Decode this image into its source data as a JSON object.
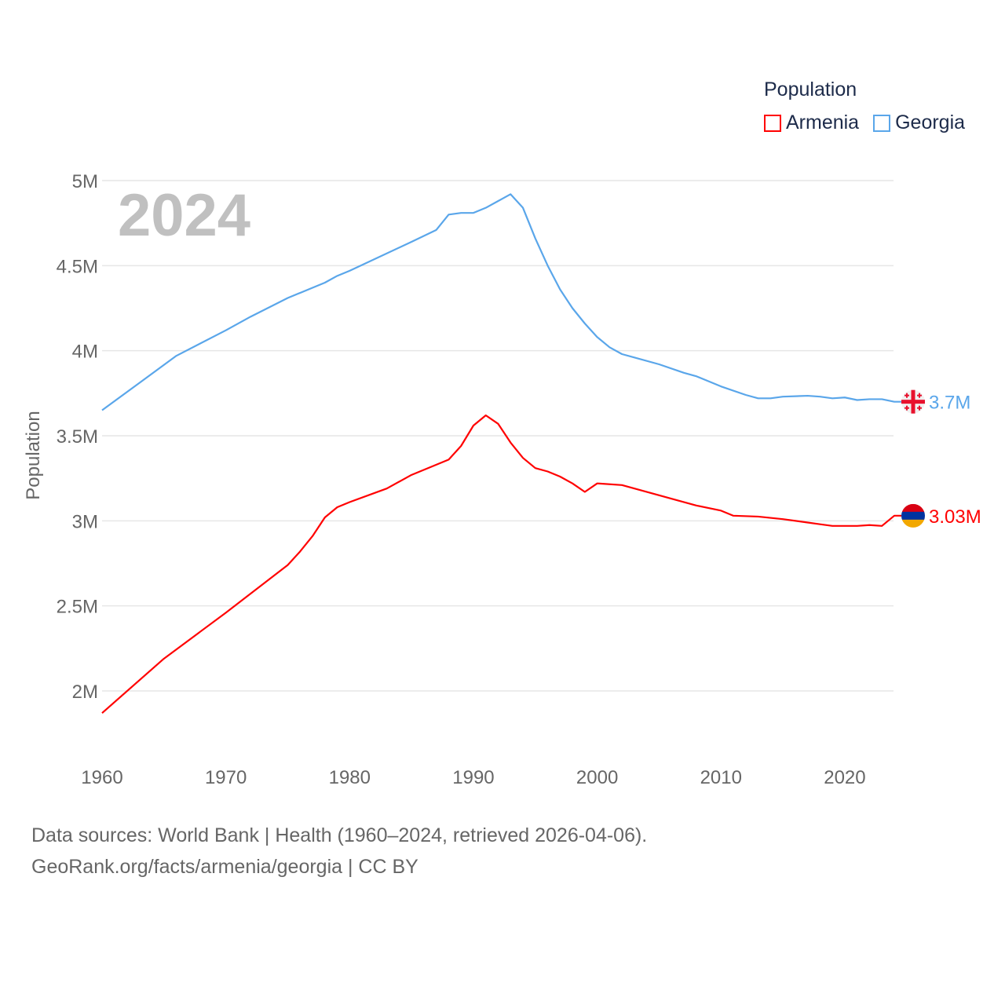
{
  "chart_data": {
    "type": "line",
    "title": "Population",
    "year_label": "2024",
    "xlabel": "",
    "ylabel": "Population",
    "xlim": [
      1960,
      2024
    ],
    "ylim": [
      1.8,
      5.0
    ],
    "y_unit": "millions",
    "grid": true,
    "legend_placement": "top-right",
    "x_ticks": [
      "1960",
      "1970",
      "1980",
      "1990",
      "2000",
      "2010",
      "2020"
    ],
    "y_ticks": [
      {
        "value": 2,
        "label": "2M"
      },
      {
        "value": 2.5,
        "label": "2.5M"
      },
      {
        "value": 3,
        "label": "3M"
      },
      {
        "value": 3.5,
        "label": "3.5M"
      },
      {
        "value": 4,
        "label": "4M"
      },
      {
        "value": 4.5,
        "label": "4.5M"
      },
      {
        "value": 5,
        "label": "5M"
      }
    ],
    "series": [
      {
        "name": "Armenia",
        "color": "#ff0000",
        "end_label": "3.03M",
        "flag": "armenia-flag",
        "x": [
          1960,
          1965,
          1970,
          1975,
          1976,
          1977,
          1978,
          1979,
          1980,
          1983,
          1985,
          1987,
          1988,
          1989,
          1990,
          1991,
          1992,
          1993,
          1994,
          1995,
          1996,
          1997,
          1998,
          1999,
          2000,
          2002,
          2005,
          2008,
          2010,
          2011,
          2013,
          2015,
          2017,
          2018,
          2019,
          2021,
          2022,
          2023,
          2024
        ],
        "values": [
          1.87,
          2.19,
          2.46,
          2.74,
          2.82,
          2.91,
          3.02,
          3.08,
          3.11,
          3.19,
          3.27,
          3.33,
          3.36,
          3.44,
          3.56,
          3.62,
          3.57,
          3.46,
          3.37,
          3.31,
          3.29,
          3.26,
          3.22,
          3.17,
          3.22,
          3.21,
          3.15,
          3.09,
          3.06,
          3.03,
          3.025,
          3.01,
          2.99,
          2.98,
          2.97,
          2.97,
          2.975,
          2.97,
          3.03
        ]
      },
      {
        "name": "Georgia",
        "color": "#5aa6ea",
        "end_label": "3.7M",
        "flag": "georgia-flag",
        "x": [
          1960,
          1963,
          1966,
          1970,
          1972,
          1975,
          1977,
          1978,
          1979,
          1980,
          1985,
          1987,
          1988,
          1989,
          1990,
          1991,
          1992,
          1993,
          1994,
          1995,
          1996,
          1997,
          1998,
          1999,
          2000,
          2001,
          2002,
          2003,
          2005,
          2007,
          2008,
          2009,
          2010,
          2012,
          2013,
          2014,
          2015,
          2017,
          2018,
          2019,
          2020,
          2021,
          2022,
          2023,
          2024
        ],
        "values": [
          3.65,
          3.81,
          3.97,
          4.12,
          4.2,
          4.31,
          4.37,
          4.4,
          4.44,
          4.47,
          4.64,
          4.71,
          4.8,
          4.81,
          4.81,
          4.84,
          4.88,
          4.92,
          4.84,
          4.66,
          4.5,
          4.36,
          4.25,
          4.16,
          4.08,
          4.02,
          3.98,
          3.96,
          3.92,
          3.87,
          3.85,
          3.82,
          3.79,
          3.74,
          3.72,
          3.72,
          3.73,
          3.735,
          3.73,
          3.72,
          3.725,
          3.71,
          3.715,
          3.715,
          3.7
        ]
      }
    ]
  },
  "legend": {
    "title": "Population",
    "items": [
      "Armenia",
      "Georgia"
    ]
  },
  "footer": {
    "line1": "Data sources: World Bank | Health (1960–2024, retrieved 2026-04-06).",
    "line2": "GeoRank.org/facts/armenia/georgia | CC BY"
  }
}
